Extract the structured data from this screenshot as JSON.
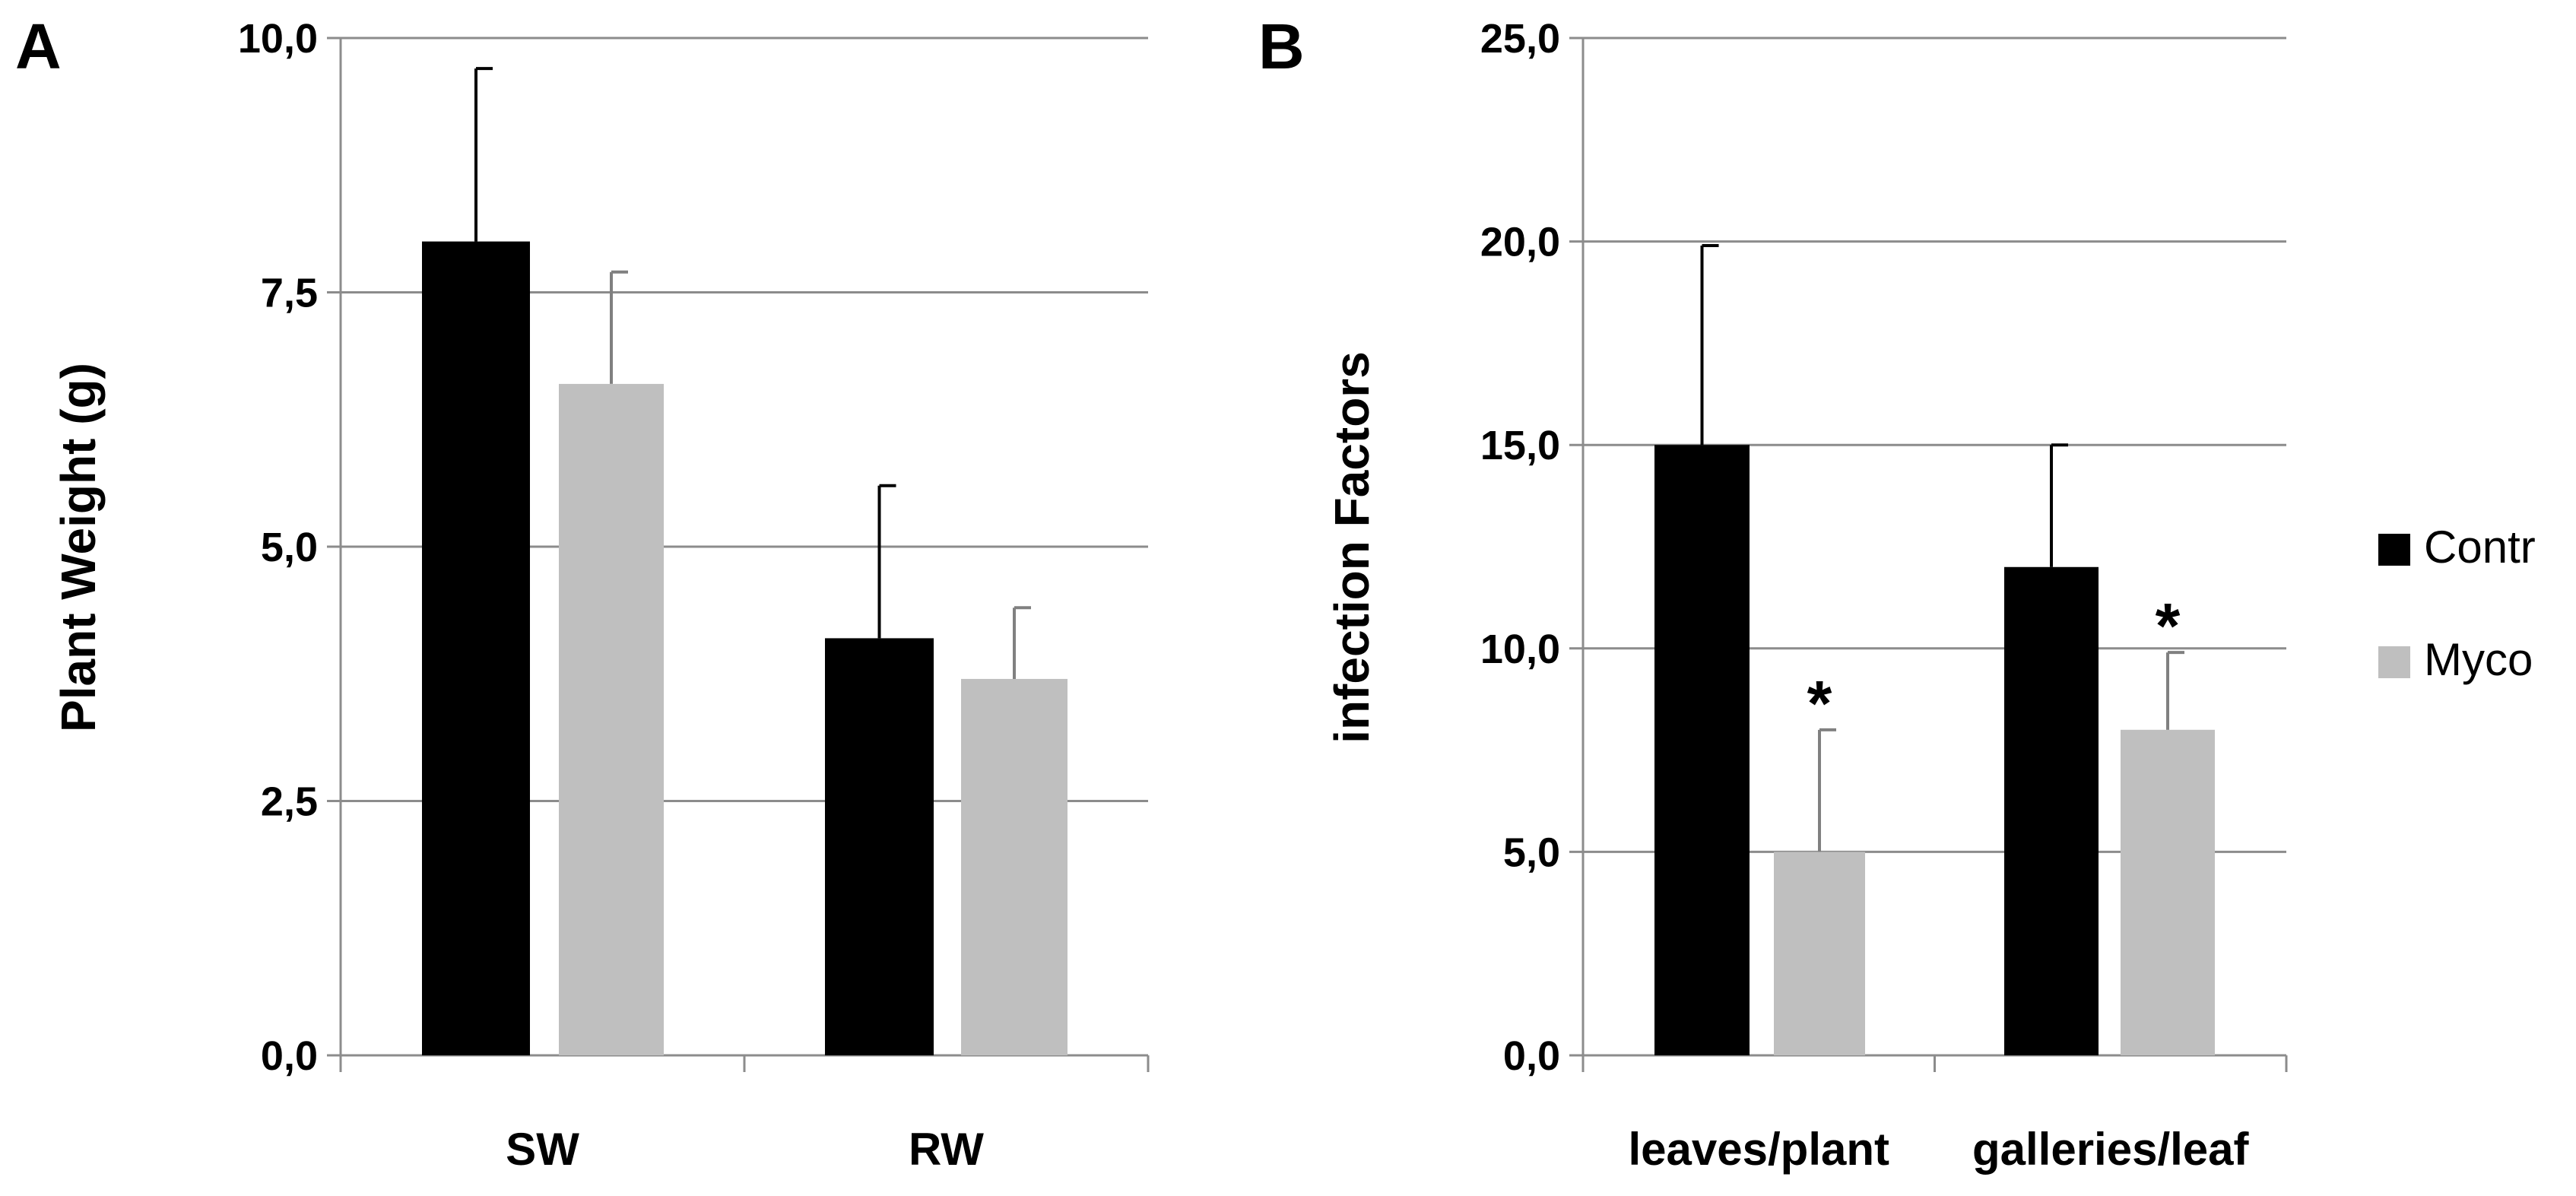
{
  "chart_data": [
    {
      "panel_label": "A",
      "type": "bar",
      "title": "",
      "xlabel": "",
      "ylabel": "Plant Weight (g)",
      "ylim": [
        0,
        10
      ],
      "yticks": [
        0,
        2.5,
        5,
        7.5,
        10
      ],
      "ytick_labels": [
        "0,0",
        "2,5",
        "5,0",
        "7,5",
        "10,0"
      ],
      "grid": true,
      "categories": [
        "SW",
        "RW"
      ],
      "series": [
        {
          "name": "Contr",
          "color": "#000000",
          "values": [
            8.0,
            4.1
          ],
          "errors": [
            1.7,
            1.5
          ],
          "annotations": [
            "",
            ""
          ]
        },
        {
          "name": "Myco",
          "color": "#bfbfbf",
          "values": [
            6.6,
            3.7
          ],
          "errors": [
            1.1,
            0.7
          ],
          "annotations": [
            "",
            ""
          ]
        }
      ]
    },
    {
      "panel_label": "B",
      "type": "bar",
      "title": "",
      "xlabel": "",
      "ylabel": "infection Factors",
      "ylim": [
        0,
        25
      ],
      "yticks": [
        0,
        5,
        10,
        15,
        20,
        25
      ],
      "ytick_labels": [
        "0,0",
        "5,0",
        "10,0",
        "15,0",
        "20,0",
        "25,0"
      ],
      "grid": true,
      "categories": [
        "leaves/plant",
        "galleries/leaf"
      ],
      "series": [
        {
          "name": "Contr",
          "color": "#000000",
          "values": [
            15.0,
            12.0
          ],
          "errors": [
            4.9,
            3.0
          ],
          "annotations": [
            "",
            ""
          ]
        },
        {
          "name": "Myco",
          "color": "#bfbfbf",
          "values": [
            5.0,
            8.0
          ],
          "errors": [
            3.0,
            1.9
          ],
          "annotations": [
            "*",
            "*"
          ]
        }
      ]
    }
  ],
  "legend": {
    "placement": "right",
    "items": [
      {
        "label": "Contr",
        "color": "#000000"
      },
      {
        "label": "Myco",
        "color": "#bfbfbf"
      }
    ]
  },
  "style": {
    "grid_color": "#8c8c8c",
    "axis_color": "#8c8c8c",
    "error_bar_color": "#000000"
  }
}
